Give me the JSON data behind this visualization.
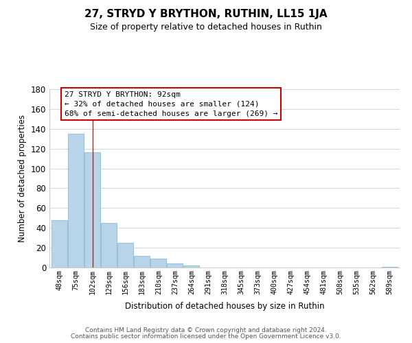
{
  "title": "27, STRYD Y BRYTHON, RUTHIN, LL15 1JA",
  "subtitle": "Size of property relative to detached houses in Ruthin",
  "xlabel": "Distribution of detached houses by size in Ruthin",
  "ylabel": "Number of detached properties",
  "bar_labels": [
    "48sqm",
    "75sqm",
    "102sqm",
    "129sqm",
    "156sqm",
    "183sqm",
    "210sqm",
    "237sqm",
    "264sqm",
    "291sqm",
    "318sqm",
    "345sqm",
    "373sqm",
    "400sqm",
    "427sqm",
    "454sqm",
    "481sqm",
    "508sqm",
    "535sqm",
    "562sqm",
    "589sqm"
  ],
  "bar_heights": [
    48,
    135,
    116,
    45,
    25,
    12,
    9,
    4,
    2,
    0,
    0,
    0,
    0,
    0,
    0,
    0,
    0,
    0,
    0,
    0,
    1
  ],
  "bar_color": "#b8d4e8",
  "bar_edge_color": "#8ab8d8",
  "ylim": [
    0,
    180
  ],
  "yticks": [
    0,
    20,
    40,
    60,
    80,
    100,
    120,
    140,
    160,
    180
  ],
  "red_line_x": 2.0,
  "annotation_title": "27 STRYD Y BRYTHON: 92sqm",
  "annotation_line1": "← 32% of detached houses are smaller (124)",
  "annotation_line2": "68% of semi-detached houses are larger (269) →",
  "footer_line1": "Contains HM Land Registry data © Crown copyright and database right 2024.",
  "footer_line2": "Contains public sector information licensed under the Open Government Licence v3.0.",
  "background_color": "#ffffff",
  "grid_color": "#d0d8e0"
}
